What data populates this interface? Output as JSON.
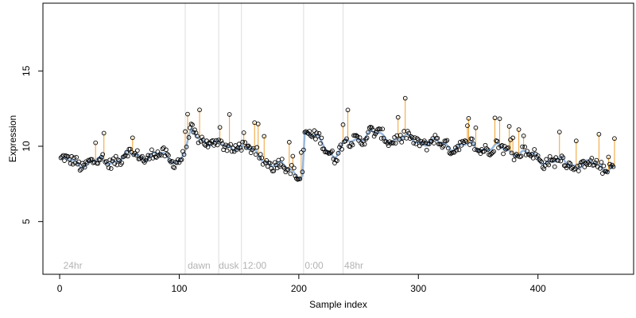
{
  "chart_data": {
    "type": "scatter",
    "title": "",
    "xlabel": "Sample index",
    "ylabel": "Expression",
    "xlim": [
      -14,
      480
    ],
    "ylim": [
      1.5,
      19.5
    ],
    "xticks": [
      0,
      100,
      200,
      300,
      400
    ],
    "yticks": [
      5,
      10,
      15
    ],
    "grid": false,
    "legend": "none",
    "colors": {
      "points_edge": "#000000",
      "fitted_line": "#9ab8dc",
      "residual_segments": "#f0a030",
      "marker_lines": "#dddddd",
      "annotation_text": "#b3b3b3"
    },
    "marker_lines_x": [
      105,
      133,
      152,
      204,
      237
    ],
    "annotations": [
      {
        "x": 3,
        "label": "24hr"
      },
      {
        "x": 107,
        "label": "dawn"
      },
      {
        "x": 133,
        "label": "dusk"
      },
      {
        "x": 153,
        "label": "12:00"
      },
      {
        "x": 205,
        "label": "0:00"
      },
      {
        "x": 238,
        "label": "48hr"
      }
    ],
    "trend_anchors": {
      "x": [
        0,
        20,
        40,
        60,
        80,
        100,
        105,
        110,
        120,
        130,
        140,
        150,
        160,
        170,
        180,
        190,
        200,
        203,
        205,
        210,
        220,
        230,
        240,
        250,
        260,
        280,
        300,
        320,
        340,
        360,
        380,
        400,
        420,
        440,
        463
      ],
      "y": [
        9.0,
        8.9,
        9.0,
        9.4,
        9.4,
        9.1,
        9.7,
        10.8,
        10.5,
        10.2,
        9.8,
        10.2,
        9.6,
        9.2,
        8.8,
        8.5,
        8.2,
        8.2,
        10.9,
        10.6,
        10.3,
        9.3,
        10.2,
        10.6,
        10.8,
        10.5,
        10.4,
        10.1,
        10.0,
        9.9,
        9.7,
        9.2,
        8.9,
        8.8,
        8.6
      ]
    },
    "n_points": 464,
    "series": [
      {
        "name": "",
        "style": "open-circle",
        "values_ref": "generated"
      }
    ]
  }
}
